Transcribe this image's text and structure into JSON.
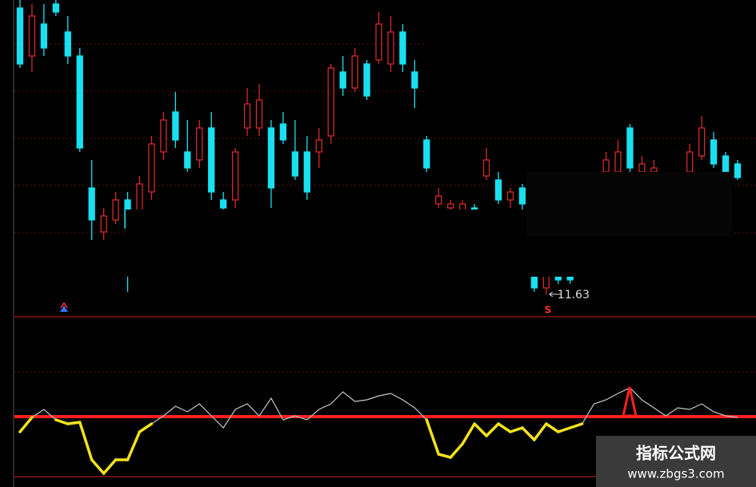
{
  "chart_data": [
    {
      "type": "candlestick",
      "open": [
        15.21,
        14.61,
        15.01,
        15.26,
        14.91,
        14.61,
        12.96,
        12.41,
        12.56,
        12.81,
        12.61,
        12.91,
        13.41,
        13.91,
        13.41,
        13.31,
        13.71,
        12.81,
        12.81,
        13.71,
        13.71,
        13.71,
        13.76,
        13.41,
        13.41,
        13.41,
        13.61,
        14.41,
        14.21,
        14.51,
        14.56,
        14.51,
        14.91,
        14.41,
        13.56,
        12.76,
        12.71,
        12.66,
        12.71,
        13.11,
        13.06,
        12.81,
        12.96,
        11.86,
        11.71,
        11.86,
        11.91,
        12.31,
        12.71,
        13.16,
        13.16,
        13.71,
        13.16,
        13.16,
        12.91,
        12.91,
        13.16,
        13.36,
        13.56,
        13.36,
        13.26
      ],
      "high": [
        15.31,
        15.26,
        15.26,
        15.31,
        15.11,
        14.71,
        13.31,
        12.71,
        12.91,
        12.91,
        13.11,
        13.61,
        13.91,
        14.16,
        13.81,
        13.81,
        13.91,
        12.91,
        13.46,
        14.21,
        14.26,
        13.81,
        13.91,
        13.81,
        13.61,
        13.71,
        14.51,
        14.61,
        14.71,
        14.56,
        15.16,
        15.11,
        15.01,
        14.56,
        13.61,
        12.96,
        12.81,
        12.81,
        12.76,
        13.46,
        13.16,
        12.96,
        13.01,
        11.91,
        11.91,
        11.91,
        11.96,
        12.61,
        13.11,
        13.41,
        13.56,
        13.76,
        13.36,
        13.31,
        13.06,
        13.01,
        13.51,
        13.86,
        13.66,
        13.41,
        13.31
      ],
      "low": [
        14.46,
        14.41,
        14.61,
        15.11,
        14.51,
        13.41,
        12.31,
        12.31,
        12.51,
        11.66,
        12.51,
        12.81,
        13.31,
        13.46,
        13.16,
        13.21,
        12.81,
        12.66,
        12.71,
        13.61,
        13.61,
        12.71,
        13.51,
        13.06,
        12.81,
        13.21,
        13.51,
        14.11,
        14.16,
        14.06,
        14.51,
        14.41,
        14.41,
        13.96,
        13.16,
        12.71,
        12.66,
        12.61,
        12.56,
        13.06,
        12.76,
        12.71,
        12.66,
        11.66,
        11.63,
        11.76,
        11.76,
        12.26,
        12.61,
        13.11,
        13.11,
        13.16,
        13.11,
        13.11,
        12.81,
        12.81,
        13.11,
        13.31,
        13.21,
        13.06,
        13.06
      ],
      "close": [
        14.51,
        15.11,
        14.71,
        15.16,
        14.61,
        13.46,
        12.56,
        12.61,
        12.81,
        12.46,
        13.01,
        13.51,
        13.81,
        13.56,
        13.21,
        13.71,
        12.91,
        12.71,
        13.41,
        14.01,
        14.06,
        12.96,
        13.56,
        13.11,
        12.91,
        13.56,
        14.46,
        14.21,
        14.61,
        14.11,
        15.01,
        14.91,
        14.51,
        14.21,
        13.21,
        12.86,
        12.76,
        12.76,
        12.61,
        13.31,
        12.81,
        12.91,
        12.76,
        11.71,
        11.86,
        11.81,
        11.81,
        12.51,
        13.01,
        13.31,
        13.41,
        13.21,
        13.26,
        13.21,
        13.01,
        12.86,
        13.41,
        13.71,
        13.26,
        13.16,
        13.09
      ],
      "up_color": "#d42a2a",
      "down_color": "#19e0f0",
      "annotation": "11.63",
      "signal": "S"
    },
    {
      "type": "line",
      "values": [
        60,
        78,
        88,
        75,
        70,
        72,
        25,
        8,
        25,
        25,
        60,
        70,
        80,
        92,
        85,
        95,
        80,
        65,
        88,
        95,
        80,
        102,
        75,
        80,
        75,
        88,
        95,
        110,
        98,
        100,
        105,
        108,
        100,
        90,
        75,
        32,
        28,
        45,
        70,
        55,
        70,
        60,
        65,
        50,
        70,
        60,
        65,
        70,
        95,
        100,
        108,
        115,
        100,
        90,
        80,
        90,
        88,
        95,
        85,
        80,
        78
      ],
      "color": "#c8c8c8",
      "below_color": "#f2e21c",
      "threshold": 79,
      "threshold_color": "#ff1f1f"
    }
  ],
  "watermark": {
    "title": "指标公式网",
    "url": "www.zbgs3.com"
  }
}
